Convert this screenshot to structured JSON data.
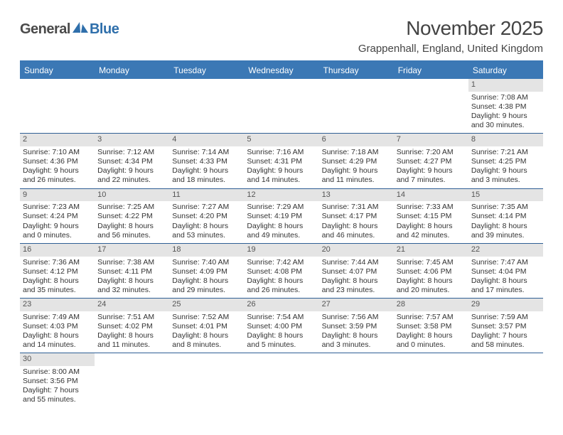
{
  "logo": {
    "word1": "General",
    "word2": "Blue"
  },
  "title": "November 2025",
  "location": "Grappenhall, England, United Kingdom",
  "colors": {
    "header_bg": "#3b78b5",
    "header_text": "#ffffff",
    "daynum_bg": "#e4e4e4",
    "week_border": "#2f5f95",
    "logo_gray": "#4a4a4a",
    "logo_blue": "#2f6fab"
  },
  "day_names": [
    "Sunday",
    "Monday",
    "Tuesday",
    "Wednesday",
    "Thursday",
    "Friday",
    "Saturday"
  ],
  "weeks": [
    [
      {
        "n": "",
        "sr": "",
        "ss": "",
        "dl": ""
      },
      {
        "n": "",
        "sr": "",
        "ss": "",
        "dl": ""
      },
      {
        "n": "",
        "sr": "",
        "ss": "",
        "dl": ""
      },
      {
        "n": "",
        "sr": "",
        "ss": "",
        "dl": ""
      },
      {
        "n": "",
        "sr": "",
        "ss": "",
        "dl": ""
      },
      {
        "n": "",
        "sr": "",
        "ss": "",
        "dl": ""
      },
      {
        "n": "1",
        "sr": "Sunrise: 7:08 AM",
        "ss": "Sunset: 4:38 PM",
        "dl": "Daylight: 9 hours and 30 minutes."
      }
    ],
    [
      {
        "n": "2",
        "sr": "Sunrise: 7:10 AM",
        "ss": "Sunset: 4:36 PM",
        "dl": "Daylight: 9 hours and 26 minutes."
      },
      {
        "n": "3",
        "sr": "Sunrise: 7:12 AM",
        "ss": "Sunset: 4:34 PM",
        "dl": "Daylight: 9 hours and 22 minutes."
      },
      {
        "n": "4",
        "sr": "Sunrise: 7:14 AM",
        "ss": "Sunset: 4:33 PM",
        "dl": "Daylight: 9 hours and 18 minutes."
      },
      {
        "n": "5",
        "sr": "Sunrise: 7:16 AM",
        "ss": "Sunset: 4:31 PM",
        "dl": "Daylight: 9 hours and 14 minutes."
      },
      {
        "n": "6",
        "sr": "Sunrise: 7:18 AM",
        "ss": "Sunset: 4:29 PM",
        "dl": "Daylight: 9 hours and 11 minutes."
      },
      {
        "n": "7",
        "sr": "Sunrise: 7:20 AM",
        "ss": "Sunset: 4:27 PM",
        "dl": "Daylight: 9 hours and 7 minutes."
      },
      {
        "n": "8",
        "sr": "Sunrise: 7:21 AM",
        "ss": "Sunset: 4:25 PM",
        "dl": "Daylight: 9 hours and 3 minutes."
      }
    ],
    [
      {
        "n": "9",
        "sr": "Sunrise: 7:23 AM",
        "ss": "Sunset: 4:24 PM",
        "dl": "Daylight: 9 hours and 0 minutes."
      },
      {
        "n": "10",
        "sr": "Sunrise: 7:25 AM",
        "ss": "Sunset: 4:22 PM",
        "dl": "Daylight: 8 hours and 56 minutes."
      },
      {
        "n": "11",
        "sr": "Sunrise: 7:27 AM",
        "ss": "Sunset: 4:20 PM",
        "dl": "Daylight: 8 hours and 53 minutes."
      },
      {
        "n": "12",
        "sr": "Sunrise: 7:29 AM",
        "ss": "Sunset: 4:19 PM",
        "dl": "Daylight: 8 hours and 49 minutes."
      },
      {
        "n": "13",
        "sr": "Sunrise: 7:31 AM",
        "ss": "Sunset: 4:17 PM",
        "dl": "Daylight: 8 hours and 46 minutes."
      },
      {
        "n": "14",
        "sr": "Sunrise: 7:33 AM",
        "ss": "Sunset: 4:15 PM",
        "dl": "Daylight: 8 hours and 42 minutes."
      },
      {
        "n": "15",
        "sr": "Sunrise: 7:35 AM",
        "ss": "Sunset: 4:14 PM",
        "dl": "Daylight: 8 hours and 39 minutes."
      }
    ],
    [
      {
        "n": "16",
        "sr": "Sunrise: 7:36 AM",
        "ss": "Sunset: 4:12 PM",
        "dl": "Daylight: 8 hours and 35 minutes."
      },
      {
        "n": "17",
        "sr": "Sunrise: 7:38 AM",
        "ss": "Sunset: 4:11 PM",
        "dl": "Daylight: 8 hours and 32 minutes."
      },
      {
        "n": "18",
        "sr": "Sunrise: 7:40 AM",
        "ss": "Sunset: 4:09 PM",
        "dl": "Daylight: 8 hours and 29 minutes."
      },
      {
        "n": "19",
        "sr": "Sunrise: 7:42 AM",
        "ss": "Sunset: 4:08 PM",
        "dl": "Daylight: 8 hours and 26 minutes."
      },
      {
        "n": "20",
        "sr": "Sunrise: 7:44 AM",
        "ss": "Sunset: 4:07 PM",
        "dl": "Daylight: 8 hours and 23 minutes."
      },
      {
        "n": "21",
        "sr": "Sunrise: 7:45 AM",
        "ss": "Sunset: 4:06 PM",
        "dl": "Daylight: 8 hours and 20 minutes."
      },
      {
        "n": "22",
        "sr": "Sunrise: 7:47 AM",
        "ss": "Sunset: 4:04 PM",
        "dl": "Daylight: 8 hours and 17 minutes."
      }
    ],
    [
      {
        "n": "23",
        "sr": "Sunrise: 7:49 AM",
        "ss": "Sunset: 4:03 PM",
        "dl": "Daylight: 8 hours and 14 minutes."
      },
      {
        "n": "24",
        "sr": "Sunrise: 7:51 AM",
        "ss": "Sunset: 4:02 PM",
        "dl": "Daylight: 8 hours and 11 minutes."
      },
      {
        "n": "25",
        "sr": "Sunrise: 7:52 AM",
        "ss": "Sunset: 4:01 PM",
        "dl": "Daylight: 8 hours and 8 minutes."
      },
      {
        "n": "26",
        "sr": "Sunrise: 7:54 AM",
        "ss": "Sunset: 4:00 PM",
        "dl": "Daylight: 8 hours and 5 minutes."
      },
      {
        "n": "27",
        "sr": "Sunrise: 7:56 AM",
        "ss": "Sunset: 3:59 PM",
        "dl": "Daylight: 8 hours and 3 minutes."
      },
      {
        "n": "28",
        "sr": "Sunrise: 7:57 AM",
        "ss": "Sunset: 3:58 PM",
        "dl": "Daylight: 8 hours and 0 minutes."
      },
      {
        "n": "29",
        "sr": "Sunrise: 7:59 AM",
        "ss": "Sunset: 3:57 PM",
        "dl": "Daylight: 7 hours and 58 minutes."
      }
    ],
    [
      {
        "n": "30",
        "sr": "Sunrise: 8:00 AM",
        "ss": "Sunset: 3:56 PM",
        "dl": "Daylight: 7 hours and 55 minutes."
      },
      {
        "n": "",
        "sr": "",
        "ss": "",
        "dl": ""
      },
      {
        "n": "",
        "sr": "",
        "ss": "",
        "dl": ""
      },
      {
        "n": "",
        "sr": "",
        "ss": "",
        "dl": ""
      },
      {
        "n": "",
        "sr": "",
        "ss": "",
        "dl": ""
      },
      {
        "n": "",
        "sr": "",
        "ss": "",
        "dl": ""
      },
      {
        "n": "",
        "sr": "",
        "ss": "",
        "dl": ""
      }
    ]
  ]
}
